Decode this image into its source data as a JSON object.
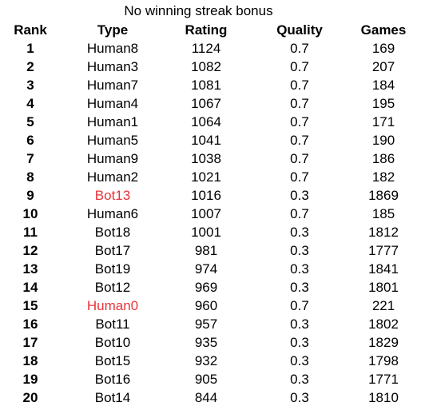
{
  "title": "No winning streak bonus",
  "highlight_color": "#e8333a",
  "columns": [
    "Rank",
    "Type",
    "Rating",
    "Quality",
    "Games"
  ],
  "rows": [
    {
      "rank": "1",
      "type": "Human8",
      "rating": "1124",
      "quality": "0.7",
      "games": "169",
      "highlight": false
    },
    {
      "rank": "2",
      "type": "Human3",
      "rating": "1082",
      "quality": "0.7",
      "games": "207",
      "highlight": false
    },
    {
      "rank": "3",
      "type": "Human7",
      "rating": "1081",
      "quality": "0.7",
      "games": "184",
      "highlight": false
    },
    {
      "rank": "4",
      "type": "Human4",
      "rating": "1067",
      "quality": "0.7",
      "games": "195",
      "highlight": false
    },
    {
      "rank": "5",
      "type": "Human1",
      "rating": "1064",
      "quality": "0.7",
      "games": "171",
      "highlight": false
    },
    {
      "rank": "6",
      "type": "Human5",
      "rating": "1041",
      "quality": "0.7",
      "games": "190",
      "highlight": false
    },
    {
      "rank": "7",
      "type": "Human9",
      "rating": "1038",
      "quality": "0.7",
      "games": "186",
      "highlight": false
    },
    {
      "rank": "8",
      "type": "Human2",
      "rating": "1021",
      "quality": "0.7",
      "games": "182",
      "highlight": false
    },
    {
      "rank": "9",
      "type": "Bot13",
      "rating": "1016",
      "quality": "0.3",
      "games": "1869",
      "highlight": true
    },
    {
      "rank": "10",
      "type": "Human6",
      "rating": "1007",
      "quality": "0.7",
      "games": "185",
      "highlight": false
    },
    {
      "rank": "11",
      "type": "Bot18",
      "rating": "1001",
      "quality": "0.3",
      "games": "1812",
      "highlight": false
    },
    {
      "rank": "12",
      "type": "Bot17",
      "rating": "981",
      "quality": "0.3",
      "games": "1777",
      "highlight": false
    },
    {
      "rank": "13",
      "type": "Bot19",
      "rating": "974",
      "quality": "0.3",
      "games": "1841",
      "highlight": false
    },
    {
      "rank": "14",
      "type": "Bot12",
      "rating": "969",
      "quality": "0.3",
      "games": "1801",
      "highlight": false
    },
    {
      "rank": "15",
      "type": "Human0",
      "rating": "960",
      "quality": "0.7",
      "games": "221",
      "highlight": true
    },
    {
      "rank": "16",
      "type": "Bot11",
      "rating": "957",
      "quality": "0.3",
      "games": "1802",
      "highlight": false
    },
    {
      "rank": "17",
      "type": "Bot10",
      "rating": "935",
      "quality": "0.3",
      "games": "1829",
      "highlight": false
    },
    {
      "rank": "18",
      "type": "Bot15",
      "rating": "932",
      "quality": "0.3",
      "games": "1798",
      "highlight": false
    },
    {
      "rank": "19",
      "type": "Bot16",
      "rating": "905",
      "quality": "0.3",
      "games": "1771",
      "highlight": false
    },
    {
      "rank": "20",
      "type": "Bot14",
      "rating": "844",
      "quality": "0.3",
      "games": "1810",
      "highlight": false
    }
  ]
}
